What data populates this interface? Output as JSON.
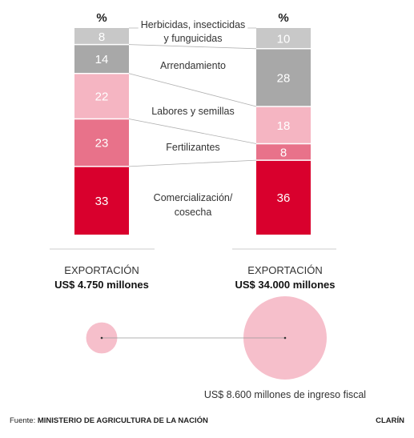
{
  "chart_data": {
    "type": "bar",
    "unit_label": "%",
    "stacked": true,
    "categories": [
      "Herbicidas, insecticidas y funguicidas",
      "Arrendamiento",
      "Labores y semillas",
      "Fertilizantes",
      "Comercialización/ cosecha"
    ],
    "category_lines": [
      [
        "Herbicidas, insecticidas",
        "y funguicidas"
      ],
      [
        "Arrendamiento"
      ],
      [
        "Labores y semillas"
      ],
      [
        "Fertilizantes"
      ],
      [
        "Comercialización/",
        "cosecha"
      ]
    ],
    "colors": [
      "#c8c8c8",
      "#a8a8a8",
      "#f5b5c2",
      "#e8728a",
      "#d9002d"
    ],
    "series": [
      {
        "values": [
          8,
          14,
          22,
          23,
          33
        ]
      },
      {
        "values": [
          10,
          28,
          18,
          8,
          36
        ]
      }
    ]
  },
  "exports": [
    {
      "label": "EXPORTACIÓN",
      "amount": "US$ 4.750 millones",
      "value_musd": 4750
    },
    {
      "label": "EXPORTACIÓN",
      "amount": "US$ 34.000 millones",
      "value_musd": 34000
    }
  ],
  "fiscal_note": "US$ 8.600 millones de ingreso fiscal",
  "colors": {
    "bubble": "#f6bfcb",
    "connector": "#b0b0b0",
    "baseline": "#cccccc"
  },
  "footer": {
    "source_prefix": "Fuente:",
    "source_name": "MINISTERIO DE AGRICULTURA DE LA NACIÓN",
    "brand": "CLARÍN"
  }
}
